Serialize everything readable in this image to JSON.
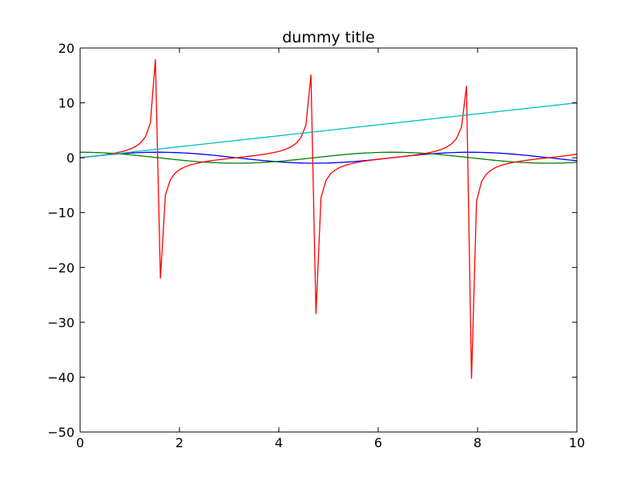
{
  "chart_data": {
    "type": "line",
    "title": "dummy title",
    "xlabel": "",
    "ylabel": "",
    "xlim": [
      0,
      10
    ],
    "ylim": [
      -50,
      20
    ],
    "xticks": [
      0,
      2,
      4,
      6,
      8,
      10
    ],
    "yticks": [
      20,
      10,
      0,
      -10,
      -20,
      -30,
      -40,
      -50
    ],
    "grid": false,
    "series": [
      {
        "color": "#0000ff",
        "function": "sin",
        "x_range": [
          0,
          10
        ]
      },
      {
        "color": "#008000",
        "function": "cos",
        "x_range": [
          0,
          10
        ]
      },
      {
        "color": "#ff0000",
        "function": "tan",
        "x_range": [
          0,
          10
        ]
      },
      {
        "color": "#00bfbf",
        "function": "linear",
        "x_range": [
          0,
          10
        ]
      }
    ]
  }
}
